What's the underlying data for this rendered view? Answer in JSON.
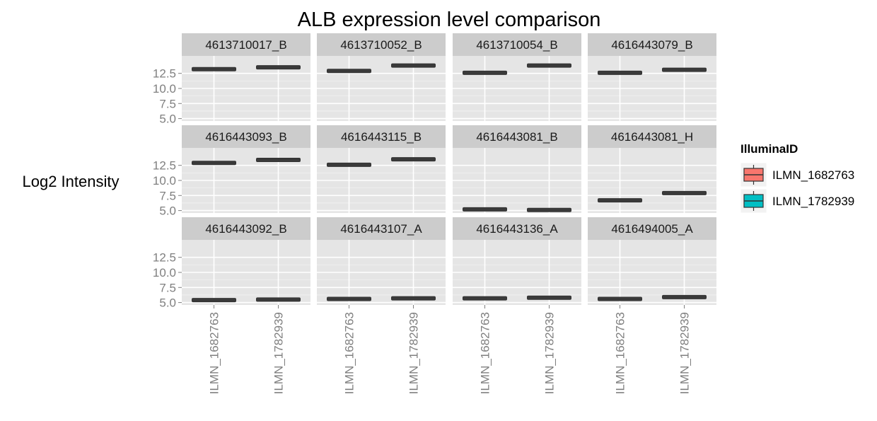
{
  "chart_data": {
    "type": "boxplot",
    "title": "ALB expression level comparison",
    "ylabel": "Log2 Intensity",
    "xlabel": "",
    "ylim": [
      4.6,
      15.4
    ],
    "yticks": [
      "5.0",
      "7.5",
      "10.0",
      "12.5"
    ],
    "ytick_values": [
      5.0,
      7.5,
      10.0,
      12.5
    ],
    "grid": true,
    "facet_layout": {
      "rows": 3,
      "cols": 4
    },
    "categories": [
      "ILMN_1682763",
      "ILMN_1782939"
    ],
    "colors": {
      "ILMN_1682763": "#F8766D",
      "ILMN_1782939": "#00BFC4"
    },
    "legend": {
      "title": "IlluminaID",
      "placement": "right",
      "entries": [
        "ILMN_1682763",
        "ILMN_1782939"
      ]
    },
    "facets": [
      {
        "label": "4613710017_B",
        "values": [
          13.2,
          13.5
        ]
      },
      {
        "label": "4613710052_B",
        "values": [
          12.9,
          13.8
        ]
      },
      {
        "label": "4613710054_B",
        "values": [
          12.6,
          13.8
        ]
      },
      {
        "label": "4616443079_B",
        "values": [
          12.6,
          13.1
        ]
      },
      {
        "label": "4616443093_B",
        "values": [
          12.9,
          13.4
        ]
      },
      {
        "label": "4616443115_B",
        "values": [
          12.6,
          13.5
        ]
      },
      {
        "label": "4616443081_B",
        "values": [
          5.2,
          5.1
        ]
      },
      {
        "label": "4616443081_H",
        "values": [
          6.7,
          7.9
        ]
      },
      {
        "label": "4616443092_B",
        "values": [
          5.4,
          5.5
        ]
      },
      {
        "label": "4616443107_A",
        "values": [
          5.6,
          5.7
        ]
      },
      {
        "label": "4616443136_A",
        "values": [
          5.7,
          5.8
        ]
      },
      {
        "label": "4616494005_A",
        "values": [
          5.6,
          5.9
        ]
      }
    ]
  }
}
